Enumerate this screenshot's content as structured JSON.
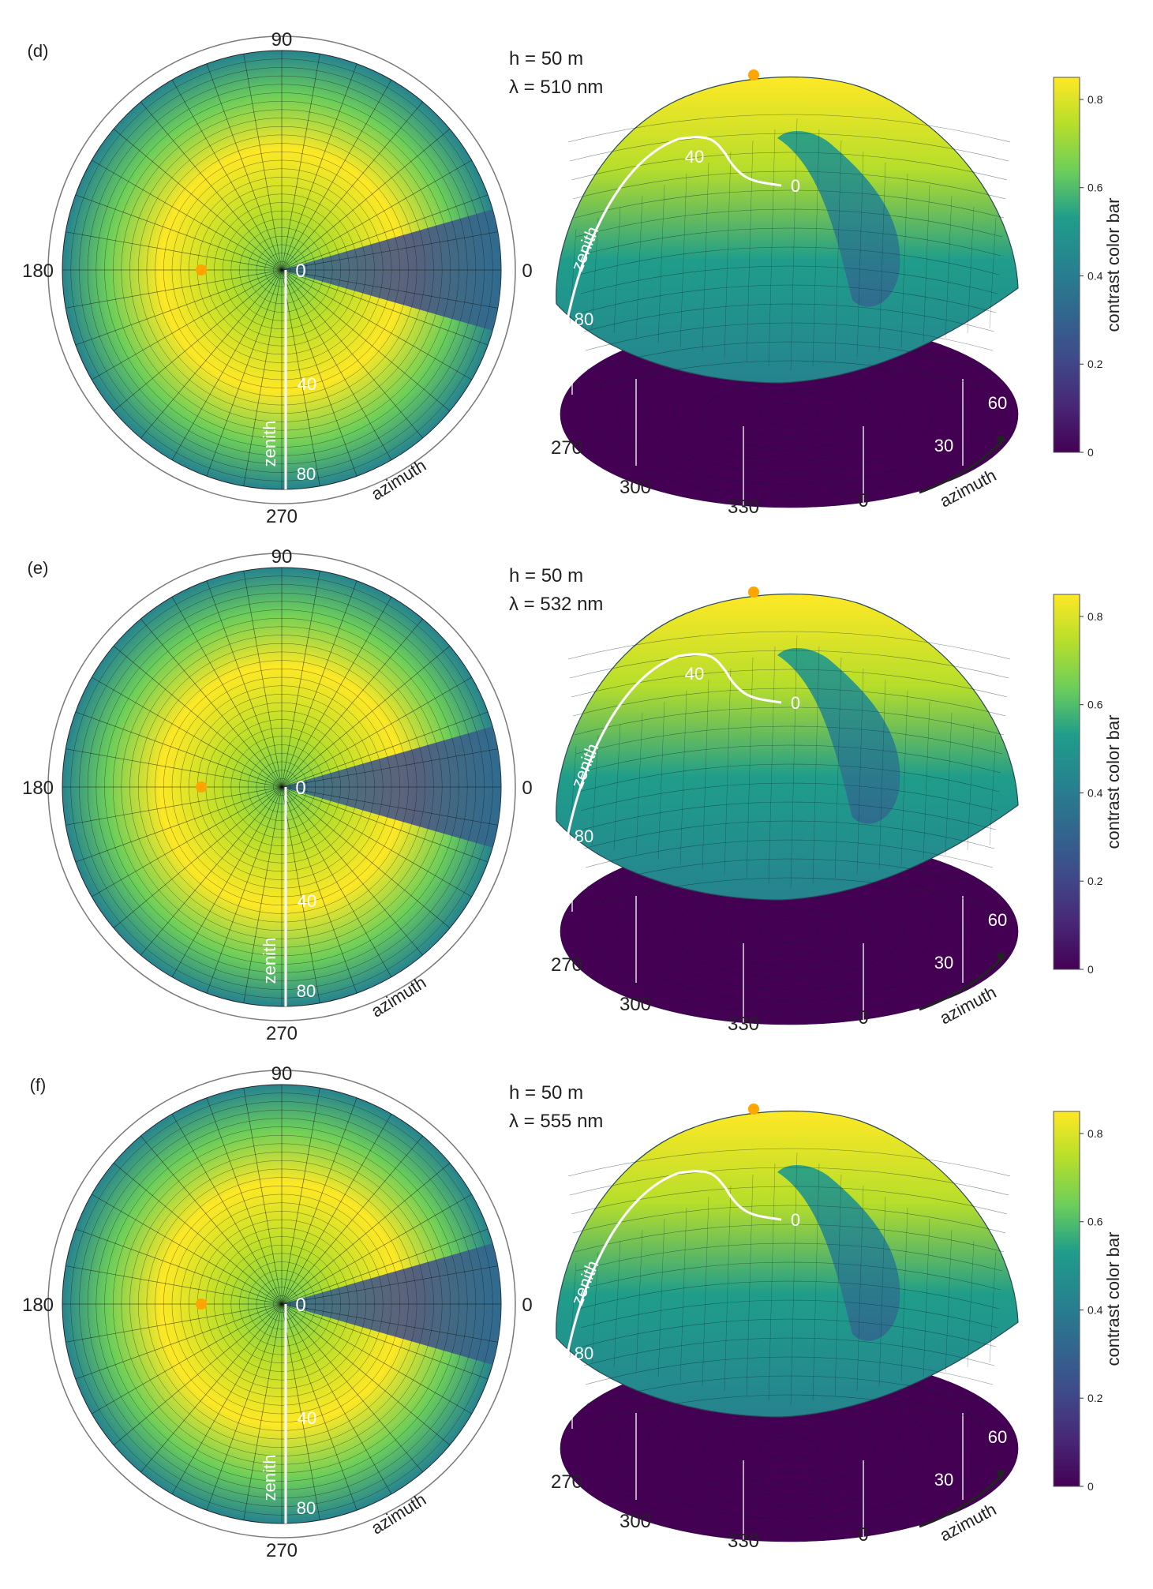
{
  "colors": {
    "viridis": [
      "#440154",
      "#482777",
      "#3f4a8a",
      "#31678e",
      "#26838f",
      "#1f9d8a",
      "#6cce5a",
      "#b6de2b",
      "#fee825"
    ],
    "sun": "#ffa500",
    "grid": "#111111",
    "rim": "#7a7a7a"
  },
  "icons": {
    "sun": "sun-marker",
    "arrow": "azimuth-arrow"
  },
  "panels": [
    {
      "letter": "(d)",
      "h": "h = 50 m",
      "lambda": "λ = 510 nm",
      "polar": {
        "n": "90",
        "w": "180",
        "e": "0",
        "s": "270",
        "center": "0",
        "z40": "40",
        "z80": "80",
        "zenith": "zenith",
        "azimuth": "azimuth"
      },
      "surface": {
        "z0": "0",
        "z40": "40",
        "z80": "80",
        "zenith": "zenith",
        "a270": "270",
        "a300": "300",
        "a330": "330",
        "a0": "0",
        "a30": "30",
        "a60": "60",
        "azimuth": "azimuth"
      },
      "colorbar": {
        "label": "contrast color bar",
        "ticks": [
          "0",
          "0.2",
          "0.4",
          "0.6",
          "0.8"
        ]
      }
    },
    {
      "letter": "(e)",
      "h": "h = 50 m",
      "lambda": "λ = 532 nm",
      "polar": {
        "n": "90",
        "w": "180",
        "e": "0",
        "s": "270",
        "center": "0",
        "z40": "40",
        "z80": "80",
        "zenith": "zenith",
        "azimuth": "azimuth"
      },
      "surface": {
        "z0": "0",
        "z40": "40",
        "z80": "80",
        "zenith": "zenith",
        "a270": "270",
        "a300": "300",
        "a330": "330",
        "a0": "0",
        "a30": "30",
        "a60": "60",
        "azimuth": "azimuth"
      },
      "colorbar": {
        "label": "contrast color bar",
        "ticks": [
          "0",
          "0.2",
          "0.4",
          "0.6",
          "0.8"
        ]
      }
    },
    {
      "letter": "(f)",
      "h": "h = 50 m",
      "lambda": "λ = 555 nm",
      "polar": {
        "n": "90",
        "w": "180",
        "e": "0",
        "s": "270",
        "center": "0",
        "z40": "40",
        "z80": "80",
        "zenith": "zenith",
        "azimuth": "azimuth"
      },
      "surface": {
        "z0": "0",
        "z40": "",
        "z80": "80",
        "zenith": "zenith",
        "a270": "270",
        "a300": "300",
        "a330": "330",
        "a0": "0",
        "a30": "30",
        "a60": "60",
        "azimuth": "azimuth"
      },
      "colorbar": {
        "label": "contrast color bar",
        "ticks": [
          "0",
          "0.2",
          "0.4",
          "0.6",
          "0.8"
        ]
      }
    }
  ]
}
